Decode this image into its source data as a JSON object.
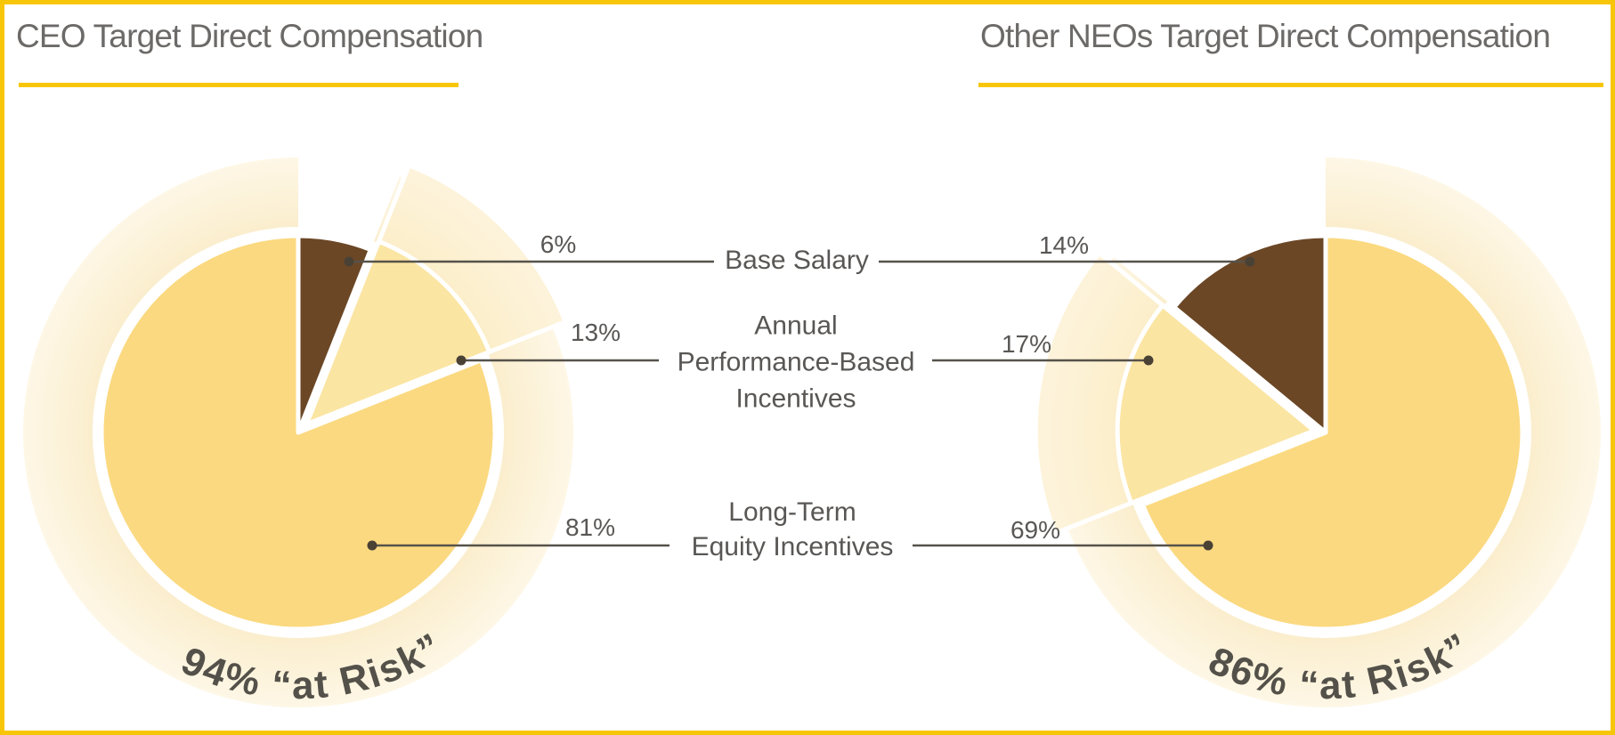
{
  "chart_data": [
    {
      "type": "pie",
      "title": "CEO Target Direct Compensation",
      "direction": "clockwise",
      "units": "percent",
      "slices": [
        {
          "label": "Base Salary",
          "value": 6,
          "display": "6%",
          "color": "#6B4726"
        },
        {
          "label": "Annual Performance-Based Incentives",
          "value": 13,
          "display": "13%",
          "color": "#FBE5A3",
          "exploded": true
        },
        {
          "label": "Long-Term Equity Incentives",
          "value": 81,
          "display": "81%",
          "color": "#FBD980"
        }
      ],
      "annotation": {
        "text": "94% “at Risk”",
        "value": 94
      }
    },
    {
      "type": "pie",
      "title": "Other NEOs Target Direct Compensation",
      "direction": "counterclockwise",
      "units": "percent",
      "slices": [
        {
          "label": "Base Salary",
          "value": 14,
          "display": "14%",
          "color": "#6B4726"
        },
        {
          "label": "Annual Performance-Based Incentives",
          "value": 17,
          "display": "17%",
          "color": "#FBE5A3",
          "exploded": true
        },
        {
          "label": "Long-Term Equity Incentives",
          "value": 69,
          "display": "69%",
          "color": "#FBD980"
        }
      ],
      "annotation": {
        "text": "86% “at Risk”",
        "value": 86
      }
    }
  ],
  "labels": {
    "rows": [
      {
        "lines": [
          "Base Salary"
        ]
      },
      {
        "lines": [
          "Annual",
          "Performance-Based",
          "Incentives"
        ]
      },
      {
        "lines": [
          "Long-Term",
          "Equity Incentives"
        ]
      }
    ]
  },
  "colors": {
    "gold": "#F8C609",
    "golden_slice": "#FBD980",
    "cream_slice": "#FBE5A3",
    "echo_wedge": "#FBEDC6",
    "ring_inner": "#FAEDCB",
    "ring_outer": "#FEF7E6",
    "brown_slice": "#6B4726",
    "title_text": "#6C6A68",
    "label_text": "#595755",
    "leader_line": "#56524A",
    "leader_dot": "#4A4135",
    "arc_text": "#54514A",
    "background": "#FFFFFF"
  }
}
